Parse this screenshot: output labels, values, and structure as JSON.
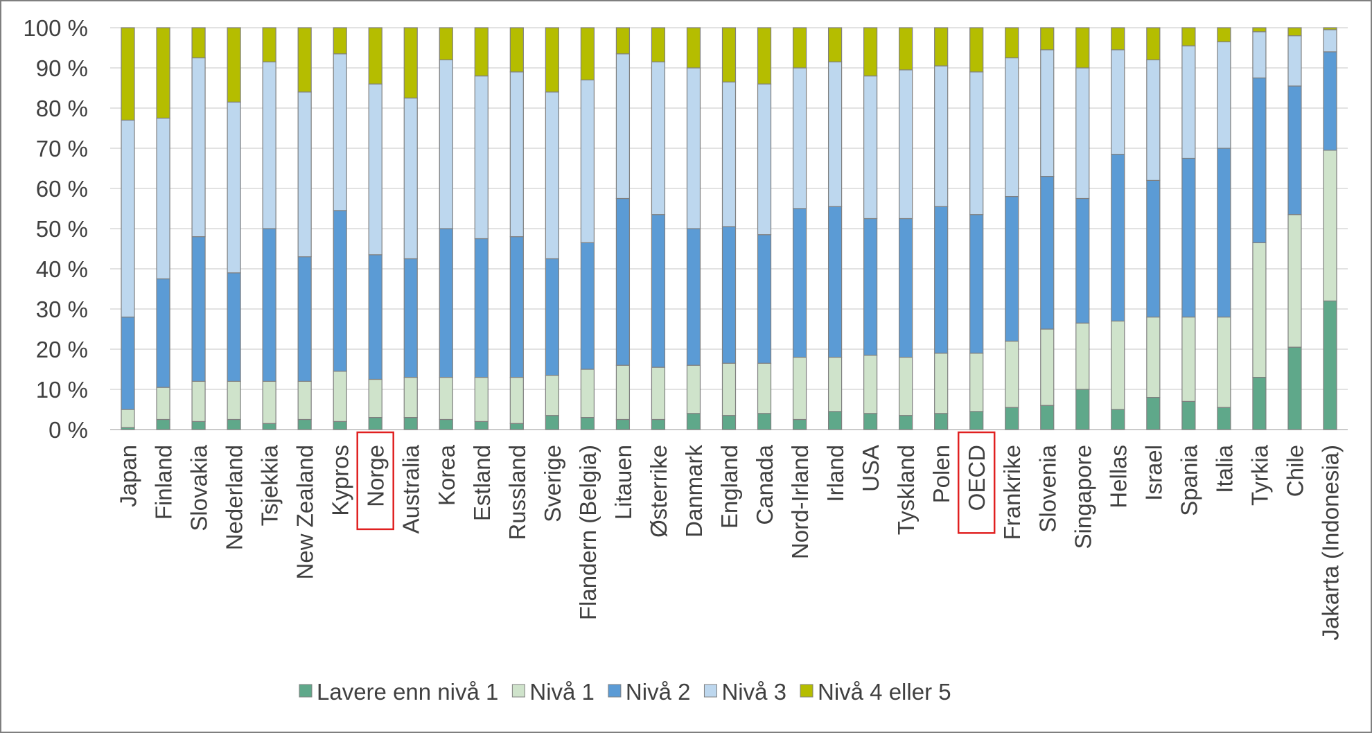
{
  "chart_data": {
    "type": "bar",
    "stacked": true,
    "normalized": true,
    "ylim": [
      0,
      100
    ],
    "yticks": [
      "0 %",
      "10 %",
      "20 %",
      "30 %",
      "40 %",
      "50 %",
      "60 %",
      "70 %",
      "80 %",
      "90 %",
      "100 %"
    ],
    "grid": true,
    "legend_position": "bottom",
    "highlighted_categories": [
      "Norge",
      "OECD"
    ],
    "highlight_color": "#e02020",
    "categories": [
      "Japan",
      "Finland",
      "Slovakia",
      "Nederland",
      "Tsjekkia",
      "New Zealand",
      "Kypros",
      "Norge",
      "Australia",
      "Korea",
      "Estland",
      "Russland",
      "Sverige",
      "Flandern (Belgia)",
      "Litauen",
      "Østerrike",
      "Danmark",
      "England",
      "Canada",
      "Nord-Irland",
      "Irland",
      "USA",
      "Tyskland",
      "Polen",
      "OECD",
      "Frankrike",
      "Slovenia",
      "Singapore",
      "Hellas",
      "Israel",
      "Spania",
      "Italia",
      "Tyrkia",
      "Chile",
      "Jakarta (Indonesia)"
    ],
    "series": [
      {
        "name": "Lavere enn nivå 1",
        "color": "#5fa88a",
        "values": [
          0.5,
          2.5,
          2,
          2.5,
          1.5,
          2.5,
          2,
          3,
          3,
          2.5,
          2,
          1.5,
          3.5,
          3,
          2.5,
          2.5,
          4,
          3.5,
          4,
          2.5,
          4.5,
          4,
          3.5,
          4,
          4.5,
          5.5,
          6,
          10,
          5,
          8,
          7,
          5.5,
          13,
          20.5,
          32
        ]
      },
      {
        "name": "Nivå 1",
        "color": "#cfe3cb",
        "values": [
          4.5,
          8,
          10,
          9.5,
          10.5,
          9.5,
          12.5,
          9.5,
          10,
          10.5,
          11,
          11.5,
          10,
          12,
          13.5,
          13,
          12,
          13,
          12.5,
          15.5,
          13.5,
          14.5,
          14.5,
          15,
          14.5,
          16.5,
          19,
          16.5,
          22,
          20,
          21,
          22.5,
          33.5,
          33,
          37.5
        ]
      },
      {
        "name": "Nivå 2",
        "color": "#5b9bd5",
        "values": [
          23,
          27,
          36,
          27,
          38,
          31,
          40,
          31,
          29.5,
          37,
          34.5,
          35,
          29,
          31.5,
          41.5,
          38,
          34,
          34,
          32,
          37,
          37.5,
          34,
          34.5,
          36.5,
          34.5,
          36,
          38,
          31,
          41.5,
          34,
          39.5,
          42,
          41,
          32,
          24.5
        ]
      },
      {
        "name": "Nivå 3",
        "color": "#bdd7ee",
        "values": [
          49,
          40,
          44.5,
          42.5,
          41.5,
          41,
          39,
          42.5,
          40,
          42,
          40.5,
          41,
          41.5,
          40.5,
          36,
          38,
          40,
          36,
          37.5,
          35,
          36,
          35.5,
          37,
          35,
          35.5,
          34.5,
          31.5,
          32.5,
          26,
          30,
          28,
          26.5,
          11.5,
          12.5,
          5.5
        ]
      },
      {
        "name": "Nivå 4 eller 5",
        "color": "#b5bd00",
        "values": [
          23,
          22.5,
          7.5,
          18.5,
          8.5,
          16,
          6.5,
          14,
          17.5,
          8,
          12,
          11,
          16,
          13,
          6.5,
          8.5,
          10,
          13.5,
          14,
          10,
          8.5,
          12,
          10.5,
          9.5,
          11,
          7.5,
          5.5,
          10,
          5.5,
          8,
          4.5,
          3.5,
          1,
          2,
          0.5
        ]
      }
    ]
  }
}
